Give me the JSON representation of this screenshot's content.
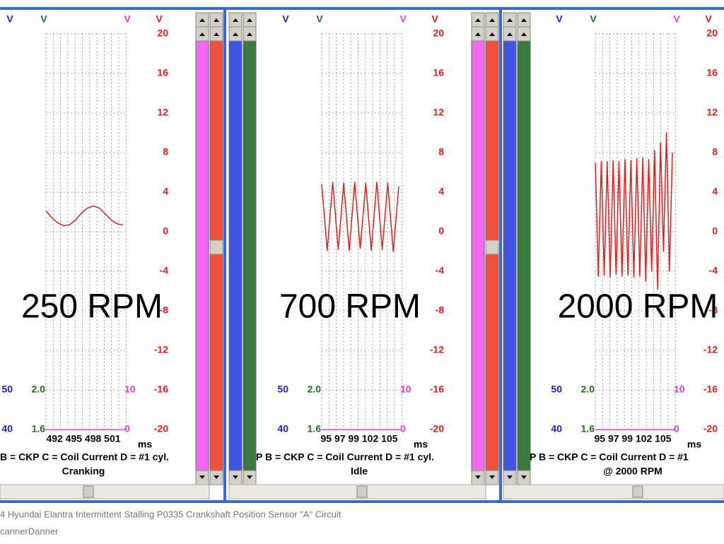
{
  "panels": [
    {
      "top_labels": [
        "V",
        "V",
        "V",
        "V"
      ],
      "scale": [
        20,
        16,
        12,
        8,
        4,
        0,
        -4,
        -8,
        -12,
        -16,
        -20
      ],
      "left_upper": [
        50,
        "2.0",
        10
      ],
      "left_lower": [
        40,
        "1.6",
        0
      ],
      "x_ticks": "492 495 498 501",
      "x_unit": "ms",
      "legend": "B = CKP   C = Coil Current   D = #1 cyl.",
      "subtitle": "Cranking",
      "rpm_label": "250 RPM",
      "trace": [
        2.1,
        1.4,
        0.9,
        0.6,
        0.7,
        1.2,
        1.9,
        2.4,
        2.6,
        2.4,
        1.8,
        1.2,
        0.8,
        0.7
      ]
    },
    {
      "top_labels": [
        "V",
        "V",
        "V",
        "V"
      ],
      "scale": [
        20,
        16,
        12,
        8,
        4,
        0,
        -4,
        -8,
        -12,
        -16,
        -20
      ],
      "left_upper": [
        50,
        "2.0",
        10
      ],
      "left_lower": [
        40,
        "1.6",
        0
      ],
      "x_ticks": "95 97 99 102 105",
      "x_unit": "ms",
      "legend": "P   B = CKP   C = Coil Current   D = #1 cyl.",
      "subtitle": "Idle",
      "rpm_label": "700 RPM",
      "trace": [
        4.8,
        -1.9,
        5.0,
        -1.8,
        4.9,
        -1.9,
        5.0,
        -1.7,
        4.9,
        -1.9,
        5.0,
        -1.8,
        4.9,
        -2.0,
        4.6
      ]
    },
    {
      "top_labels": [
        "V",
        "V",
        "V",
        "V"
      ],
      "scale": [
        20,
        16,
        12,
        8,
        4,
        0,
        -4,
        -8,
        -12,
        -16,
        -20
      ],
      "left_upper": [
        50,
        "2.0",
        10
      ],
      "left_lower": [
        40,
        "1.6",
        0
      ],
      "x_ticks": "95 97 99 102 105",
      "x_unit": "ms",
      "legend": "P   B = CKP   C = Coil Current   D = #1",
      "subtitle": "@ 2000 RPM",
      "rpm_label": "2000 RPM",
      "trace": [
        7.0,
        -4.5,
        7.1,
        -4.4,
        7.1,
        -4.6,
        7.2,
        -4.3,
        7.1,
        -4.5,
        7.3,
        -4.4,
        7.2,
        -4.6,
        7.4,
        -4.5,
        7.5,
        -5.0,
        7.3,
        -4.0,
        8.2,
        -5.8,
        9.0,
        -2.0,
        10.0,
        -4.0,
        8.0
      ]
    }
  ],
  "caption": {
    "line1": "4 Hyundai Elantra Intermittent Stalling P0335 Crankshaft Position Sensor \"A\" Circuit",
    "line2": "cannerDanner"
  }
}
